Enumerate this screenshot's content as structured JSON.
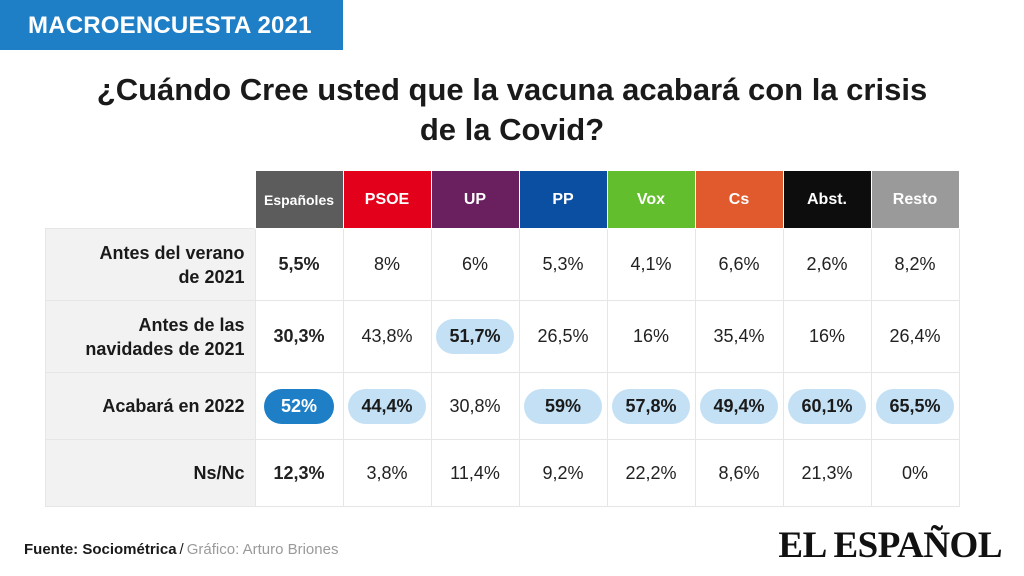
{
  "header": {
    "badge": "MACROENCUESTA 2021",
    "title_line1": "¿Cuándo Cree usted que la vacuna acabará con la crisis",
    "title_line2": "de la Covid?"
  },
  "chart_data": {
    "type": "table",
    "title": "¿Cuándo Cree usted que la vacuna acabará con la crisis de la Covid?",
    "columns": [
      {
        "label": "Españoles",
        "color": "#5c5c5c"
      },
      {
        "label": "PSOE",
        "color": "#e3001b"
      },
      {
        "label": "UP",
        "color": "#6a1f5e"
      },
      {
        "label": "PP",
        "color": "#0b4fa3"
      },
      {
        "label": "Vox",
        "color": "#63be2e"
      },
      {
        "label": "Cs",
        "color": "#e05a2e"
      },
      {
        "label": "Abst.",
        "color": "#0d0d0d"
      },
      {
        "label": "Resto",
        "color": "#9a9a9a"
      }
    ],
    "rows": [
      {
        "label_line1": "Antes del verano",
        "label_line2": "de 2021",
        "values": [
          "5,5%",
          "8%",
          "6%",
          "5,3%",
          "4,1%",
          "6,6%",
          "2,6%",
          "8,2%"
        ],
        "highlight": [
          false,
          false,
          false,
          false,
          false,
          false,
          false,
          false
        ]
      },
      {
        "label_line1": "Antes de las",
        "label_line2": "navidades de 2021",
        "values": [
          "30,3%",
          "43,8%",
          "51,7%",
          "26,5%",
          "16%",
          "35,4%",
          "16%",
          "26,4%"
        ],
        "highlight": [
          false,
          false,
          true,
          false,
          false,
          false,
          false,
          false
        ]
      },
      {
        "label_line1": "Acabará en 2022",
        "label_line2": "",
        "values": [
          "52%",
          "44,4%",
          "30,8%",
          "59%",
          "57,8%",
          "49,4%",
          "60,1%",
          "65,5%"
        ],
        "highlight": [
          true,
          true,
          false,
          true,
          true,
          true,
          true,
          true
        ]
      },
      {
        "label_line1": "Ns/Nc",
        "label_line2": "",
        "values": [
          "12,3%",
          "3,8%",
          "11,4%",
          "9,2%",
          "22,2%",
          "8,6%",
          "21,3%",
          "0%"
        ],
        "highlight": [
          false,
          false,
          false,
          false,
          false,
          false,
          false,
          false
        ]
      }
    ]
  },
  "footer": {
    "source_label": "Fuente: Sociométrica",
    "separator": "/",
    "credit": "Gráfico: Arturo Briones",
    "logo": "EL ESPAÑOL"
  }
}
